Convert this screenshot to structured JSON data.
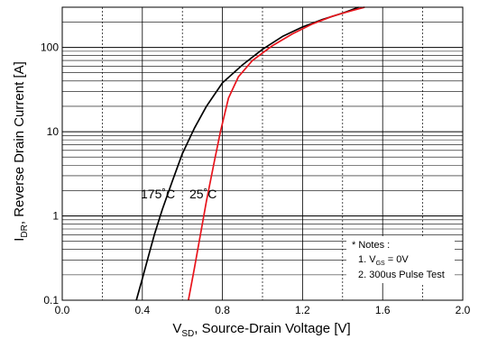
{
  "chart_data": {
    "type": "line",
    "xlabel_main": "V",
    "xlabel_sub": "SD",
    "xlabel_rest": ", Source-Drain Voltage [V]",
    "ylabel_main": "I",
    "ylabel_sub": "DR",
    "ylabel_rest": ", Reverse Drain Current [A]",
    "xlim": [
      0.0,
      2.0
    ],
    "ylim": [
      0.1,
      300
    ],
    "y_scale": "log",
    "grid": true,
    "x_ticks": [
      "0.0",
      "0.4",
      "0.8",
      "1.2",
      "1.6",
      "2.0"
    ],
    "x_tick_values": [
      0.0,
      0.4,
      0.8,
      1.2,
      1.6,
      2.0
    ],
    "y_ticks": [
      "0.1",
      "1",
      "10",
      "100"
    ],
    "y_tick_values": [
      0.1,
      1,
      10,
      100
    ],
    "series": [
      {
        "name": "175˚C",
        "color": "#000000",
        "x": [
          0.37,
          0.4,
          0.43,
          0.46,
          0.5,
          0.55,
          0.6,
          0.66,
          0.72,
          0.8,
          0.9,
          1.0,
          1.1,
          1.2,
          1.3,
          1.4,
          1.48
        ],
        "y": [
          0.1,
          0.18,
          0.33,
          0.6,
          1.2,
          2.6,
          5.5,
          11,
          20,
          38,
          62,
          95,
          135,
          175,
          215,
          255,
          300
        ]
      },
      {
        "name": "25˚C",
        "color": "#e8141c",
        "x": [
          0.63,
          0.66,
          0.69,
          0.72,
          0.76,
          0.79,
          0.83,
          0.88,
          0.95,
          1.05,
          1.15,
          1.25,
          1.35,
          1.45,
          1.51
        ],
        "y": [
          0.1,
          0.24,
          0.6,
          1.5,
          4.5,
          10,
          25,
          45,
          70,
          105,
          145,
          190,
          235,
          275,
          300
        ]
      }
    ],
    "notes": {
      "title": "* Notes :",
      "line1_prefix": "1. V",
      "line1_sub": "GS",
      "line1_rest": " = 0V",
      "line2": "2. 300us Pulse Test"
    }
  }
}
